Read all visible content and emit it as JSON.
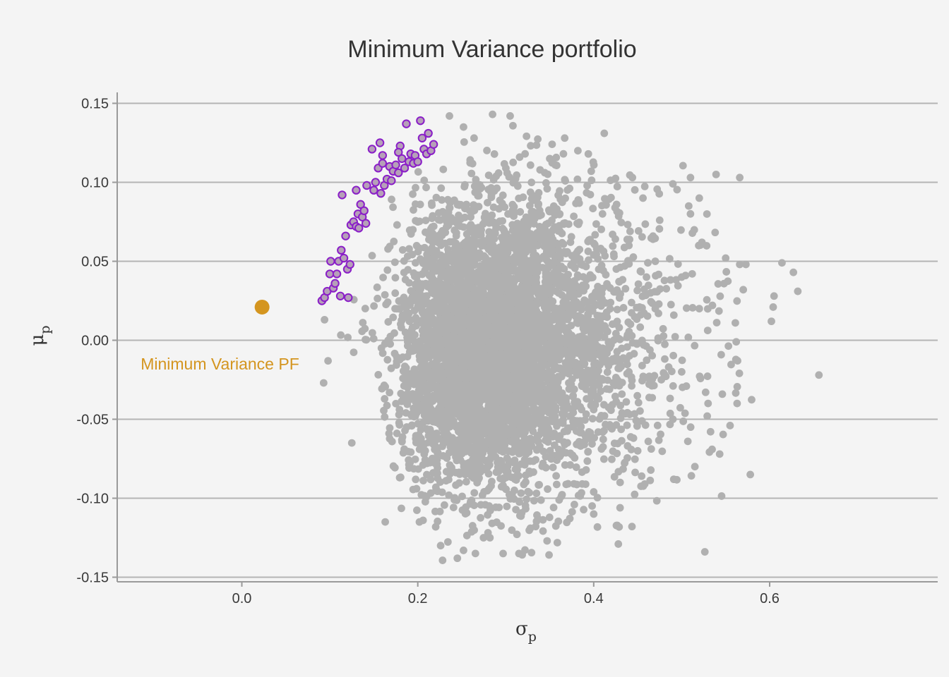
{
  "chart_data": {
    "type": "scatter",
    "title": "Minimum Variance portfolio",
    "xlabel": "σ",
    "xlabel_subscript": "p",
    "ylabel": "μ",
    "ylabel_subscript": "p",
    "xlim": [
      -0.14,
      0.79
    ],
    "ylim": [
      -0.155,
      0.16
    ],
    "x_ticks": [
      0.0,
      0.2,
      0.4,
      0.6
    ],
    "x_tick_labels": [
      "0.0",
      "0.2",
      "0.4",
      "0.6"
    ],
    "y_ticks": [
      0.15,
      0.1,
      0.05,
      0.0,
      -0.05,
      -0.1,
      -0.15
    ],
    "y_tick_labels": [
      "0.15",
      "0.10",
      "0.05",
      "0.00",
      "-0.05",
      "-0.10",
      "-0.15"
    ],
    "grid": "horizontal major only",
    "legend": "none",
    "colors": {
      "background": "#f4f4f4",
      "random_portfolios": "#b0b0b0",
      "efficient_fill": "#b6a0b8",
      "efficient_stroke": "#8a1ec8",
      "min_variance": "#d4951f",
      "grid": "#b4b4b4",
      "axis": "#9a9a9a"
    },
    "series": [
      {
        "role": "random portfolios",
        "note": "cloud of ~10000 simulated portfolios centred near σ≈0.26, μ≈0.00",
        "points": [
          [
            0.236,
            0.142
          ],
          [
            0.285,
            0.143
          ],
          [
            0.305,
            0.142
          ],
          [
            0.252,
            0.135
          ],
          [
            0.264,
            0.128
          ],
          [
            0.412,
            0.131
          ],
          [
            0.367,
            0.128
          ],
          [
            0.382,
            0.12
          ],
          [
            0.322,
            0.118
          ],
          [
            0.35,
            0.115
          ],
          [
            0.444,
            0.103
          ],
          [
            0.51,
            0.103
          ],
          [
            0.566,
            0.103
          ],
          [
            0.49,
            0.099
          ],
          [
            0.52,
            0.09
          ],
          [
            0.456,
            0.09
          ],
          [
            0.426,
            0.086
          ],
          [
            0.475,
            0.076
          ],
          [
            0.508,
            0.085
          ],
          [
            0.51,
            0.08
          ],
          [
            0.523,
            0.062
          ],
          [
            0.55,
            0.052
          ],
          [
            0.566,
            0.048
          ],
          [
            0.573,
            0.048
          ],
          [
            0.614,
            0.049
          ],
          [
            0.627,
            0.043
          ],
          [
            0.632,
            0.031
          ],
          [
            0.605,
            0.028
          ],
          [
            0.604,
            0.021
          ],
          [
            0.602,
            0.012
          ],
          [
            0.57,
            0.032
          ],
          [
            0.561,
            0.011
          ],
          [
            0.562,
            -0.001
          ],
          [
            0.656,
            -0.022
          ],
          [
            0.563,
            -0.04
          ],
          [
            0.555,
            -0.054
          ],
          [
            0.578,
            -0.085
          ],
          [
            0.515,
            -0.08
          ],
          [
            0.507,
            -0.064
          ],
          [
            0.491,
            -0.088
          ],
          [
            0.458,
            -0.091
          ],
          [
            0.43,
            -0.09
          ],
          [
            0.428,
            -0.129
          ],
          [
            0.4,
            -0.11
          ],
          [
            0.4,
            -0.096
          ],
          [
            0.378,
            -0.104
          ],
          [
            0.328,
            -0.119
          ],
          [
            0.347,
            -0.127
          ],
          [
            0.315,
            -0.135
          ],
          [
            0.297,
            -0.135
          ],
          [
            0.282,
            -0.125
          ],
          [
            0.252,
            -0.133
          ],
          [
            0.245,
            -0.138
          ],
          [
            0.226,
            -0.13
          ],
          [
            0.206,
            -0.114
          ],
          [
            0.163,
            -0.115
          ],
          [
            0.125,
            -0.065
          ],
          [
            0.093,
            -0.027
          ],
          [
            0.094,
            0.013
          ],
          [
            0.098,
            -0.013
          ],
          [
            0.47,
            0.02
          ],
          [
            0.49,
            -0.05
          ],
          [
            0.53,
            -0.04
          ],
          [
            0.46,
            0.04
          ],
          [
            0.44,
            0.06
          ],
          [
            0.41,
            0.08
          ],
          [
            0.47,
            0.05
          ],
          [
            0.52,
            0.02
          ],
          [
            0.5,
            -0.02
          ],
          [
            0.45,
            -0.07
          ],
          [
            0.44,
            -0.02
          ],
          [
            0.5,
            0.04
          ]
        ]
      },
      {
        "role": "efficient portfolios",
        "points": [
          [
            0.091,
            0.025
          ],
          [
            0.094,
            0.027
          ],
          [
            0.097,
            0.031
          ],
          [
            0.1,
            0.042
          ],
          [
            0.101,
            0.05
          ],
          [
            0.104,
            0.033
          ],
          [
            0.106,
            0.036
          ],
          [
            0.108,
            0.042
          ],
          [
            0.11,
            0.05
          ],
          [
            0.112,
            0.028
          ],
          [
            0.113,
            0.057
          ],
          [
            0.116,
            0.052
          ],
          [
            0.118,
            0.066
          ],
          [
            0.12,
            0.045
          ],
          [
            0.121,
            0.027
          ],
          [
            0.123,
            0.048
          ],
          [
            0.124,
            0.073
          ],
          [
            0.127,
            0.075
          ],
          [
            0.13,
            0.072
          ],
          [
            0.132,
            0.08
          ],
          [
            0.133,
            0.071
          ],
          [
            0.135,
            0.086
          ],
          [
            0.137,
            0.078
          ],
          [
            0.139,
            0.082
          ],
          [
            0.141,
            0.074
          ],
          [
            0.114,
            0.092
          ],
          [
            0.13,
            0.095
          ],
          [
            0.142,
            0.098
          ],
          [
            0.148,
            0.121
          ],
          [
            0.15,
            0.095
          ],
          [
            0.152,
            0.1
          ],
          [
            0.155,
            0.109
          ],
          [
            0.157,
            0.125
          ],
          [
            0.158,
            0.093
          ],
          [
            0.16,
            0.112
          ],
          [
            0.162,
            0.098
          ],
          [
            0.165,
            0.102
          ],
          [
            0.168,
            0.11
          ],
          [
            0.17,
            0.101
          ],
          [
            0.172,
            0.107
          ],
          [
            0.175,
            0.111
          ],
          [
            0.178,
            0.106
          ],
          [
            0.18,
            0.123
          ],
          [
            0.182,
            0.115
          ],
          [
            0.185,
            0.109
          ],
          [
            0.187,
            0.137
          ],
          [
            0.19,
            0.113
          ],
          [
            0.192,
            0.118
          ],
          [
            0.195,
            0.112
          ],
          [
            0.197,
            0.117
          ],
          [
            0.2,
            0.113
          ],
          [
            0.203,
            0.139
          ],
          [
            0.205,
            0.128
          ],
          [
            0.207,
            0.121
          ],
          [
            0.21,
            0.118
          ],
          [
            0.212,
            0.131
          ],
          [
            0.215,
            0.12
          ],
          [
            0.218,
            0.124
          ],
          [
            0.178,
            0.119
          ],
          [
            0.16,
            0.117
          ]
        ]
      },
      {
        "role": "minimum variance portfolio",
        "points": [
          [
            0.023,
            0.021
          ]
        ]
      }
    ],
    "annotations": [
      {
        "text": "Minimum Variance PF",
        "x": -0.115,
        "y": -0.015
      }
    ]
  }
}
